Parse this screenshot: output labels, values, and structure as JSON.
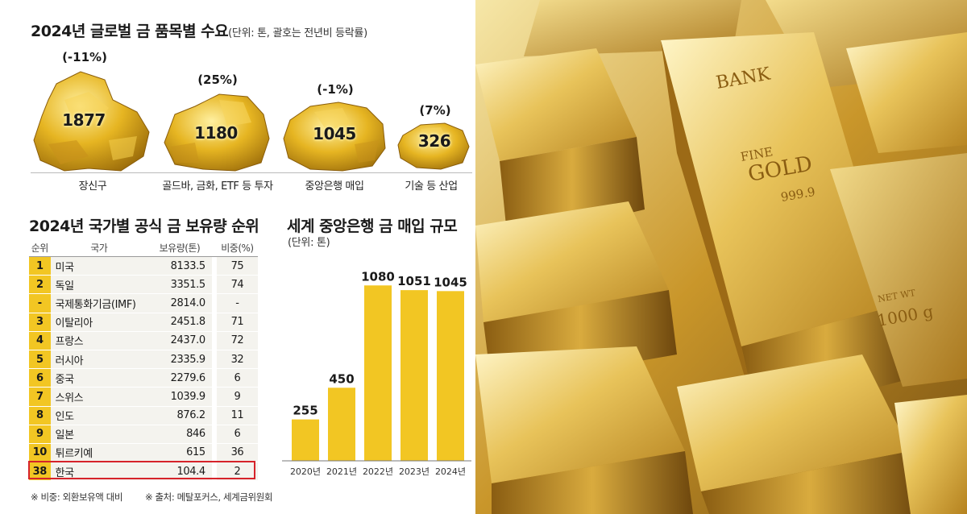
{
  "demand": {
    "title": "2024년 글로벌 금 품목별 수요",
    "subtitle": "(단위: 톤, 괄호는 전년비 등락률)",
    "items": [
      {
        "label": "장신구",
        "value": "1877",
        "change": "(-11%)"
      },
      {
        "label": "골드바, 금화, ETF 등 투자",
        "value": "1180",
        "change": "(25%)"
      },
      {
        "label": "중앙은행 매입",
        "value": "1045",
        "change": "(-1%)"
      },
      {
        "label": "기술 등 산업",
        "value": "326",
        "change": "(7%)"
      }
    ]
  },
  "ranking": {
    "title": "2024년 국가별 공식 금 보유량 순위",
    "headers": {
      "rank": "순위",
      "country": "국가",
      "holdings": "보유량(톤)",
      "share": "비중(%)"
    },
    "rows": [
      {
        "rank": "1",
        "country": "미국",
        "holdings": "8133.5",
        "share": "75"
      },
      {
        "rank": "2",
        "country": "독일",
        "holdings": "3351.5",
        "share": "74"
      },
      {
        "rank": "-",
        "country": "국제통화기금(IMF)",
        "holdings": "2814.0",
        "share": "-"
      },
      {
        "rank": "3",
        "country": "이탈리아",
        "holdings": "2451.8",
        "share": "71"
      },
      {
        "rank": "4",
        "country": "프랑스",
        "holdings": "2437.0",
        "share": "72"
      },
      {
        "rank": "5",
        "country": "러시아",
        "holdings": "2335.9",
        "share": "32"
      },
      {
        "rank": "6",
        "country": "중국",
        "holdings": "2279.6",
        "share": "6"
      },
      {
        "rank": "7",
        "country": "스위스",
        "holdings": "1039.9",
        "share": "9"
      },
      {
        "rank": "8",
        "country": "인도",
        "holdings": "876.2",
        "share": "11"
      },
      {
        "rank": "9",
        "country": "일본",
        "holdings": "846",
        "share": "6"
      },
      {
        "rank": "10",
        "country": "튀르키예",
        "holdings": "615",
        "share": "36"
      },
      {
        "rank": "38",
        "country": "한국",
        "holdings": "104.4",
        "share": "2"
      }
    ]
  },
  "footnotes": {
    "note1": "※ 비중: 외환보유액 대비",
    "note2": "※ 출처: 메탈포커스, 세계금위원회"
  },
  "chart_data": {
    "type": "bar",
    "title": "세계 중앙은행 금 매입 규모",
    "subtitle": "(단위: 톤)",
    "categories": [
      "2020년",
      "2021년",
      "2022년",
      "2023년",
      "2024년"
    ],
    "values": [
      255,
      450,
      1080,
      1051,
      1045
    ],
    "ylim": [
      0,
      1250
    ],
    "bar_color": "#f2c623"
  },
  "photo": {
    "bar_texts": [
      "BANK",
      "FINE",
      "GOLD",
      "999.9",
      "NET WT",
      "1000 g"
    ]
  },
  "colors": {
    "gold": "#f2c623",
    "highlight": "#d6232a",
    "row_bg": "#f4f3ee"
  }
}
